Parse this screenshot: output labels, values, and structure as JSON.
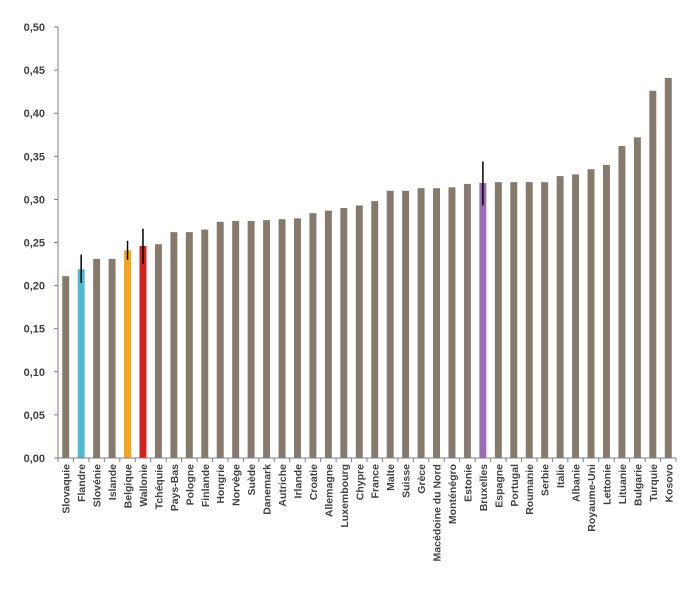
{
  "chart_data": {
    "type": "bar",
    "title": "",
    "xlabel": "",
    "ylabel": "",
    "ylim": [
      0,
      0.5
    ],
    "yticks": [
      "0,00",
      "0,05",
      "0,10",
      "0,15",
      "0,20",
      "0,25",
      "0,30",
      "0,35",
      "0,40",
      "0,45",
      "0,50"
    ],
    "grid": false,
    "legend": "none",
    "default_color": "#857a6b",
    "categories": [
      "Slovaquie",
      "Flandre",
      "Slovénie",
      "Islande",
      "Belgique",
      "Wallonie",
      "Tchéquie",
      "Pays-Bas",
      "Pologne",
      "Finlande",
      "Hongrie",
      "Norvège",
      "Suède",
      "Danemark",
      "Autriche",
      "Irlande",
      "Croatie",
      "Allemagne",
      "Luxembourg",
      "Chypre",
      "France",
      "Malte",
      "Suisse",
      "Grèce",
      "Macédoine du Nord",
      "Monténégro",
      "Estonie",
      "Bruxelles",
      "Espagne",
      "Portugal",
      "Roumanie",
      "Serbie",
      "Italie",
      "Albanie",
      "Royaume-Uni",
      "Lettonie",
      "Lituanie",
      "Bulgarie",
      "Turquie",
      "Kosovo"
    ],
    "values": [
      0.211,
      0.219,
      0.231,
      0.231,
      0.241,
      0.246,
      0.248,
      0.262,
      0.262,
      0.265,
      0.274,
      0.275,
      0.275,
      0.276,
      0.277,
      0.278,
      0.284,
      0.287,
      0.29,
      0.293,
      0.298,
      0.31,
      0.31,
      0.313,
      0.313,
      0.314,
      0.318,
      0.319,
      0.32,
      0.32,
      0.32,
      0.32,
      0.327,
      0.329,
      0.335,
      0.34,
      0.362,
      0.372,
      0.426,
      0.441
    ],
    "highlights": [
      {
        "category": "Flandre",
        "color": "#4dbad3",
        "error": [
          0.203,
          0.236
        ]
      },
      {
        "category": "Belgique",
        "color": "#f5a61c",
        "error": [
          0.23,
          0.252
        ]
      },
      {
        "category": "Wallonie",
        "color": "#d4201f",
        "error": [
          0.225,
          0.266
        ]
      },
      {
        "category": "Bruxelles",
        "color": "#9b6bb5",
        "error": [
          0.293,
          0.344
        ]
      }
    ]
  }
}
